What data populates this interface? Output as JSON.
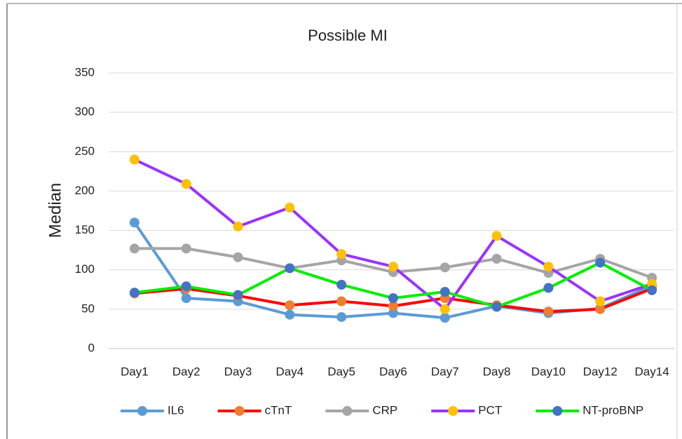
{
  "chart_data": {
    "type": "line",
    "title": "Possible MI",
    "y_label": "Median",
    "categories": [
      "Day1",
      "Day2",
      "Day3",
      "Day4",
      "Day5",
      "Day6",
      "Day7",
      "Day8",
      "Day10",
      "Day12",
      "Day14"
    ],
    "series": [
      {
        "name": "IL6",
        "color": "#5b9bd5",
        "marker_color": "#5b9bd5",
        "values": [
          160,
          64,
          60,
          43,
          40,
          45,
          39,
          54,
          45,
          51,
          80
        ]
      },
      {
        "name": "cTnT",
        "color": "#ff0000",
        "marker_color": "#ed7d31",
        "values": [
          70,
          76,
          67,
          55,
          60,
          54,
          64,
          55,
          47,
          50,
          76
        ]
      },
      {
        "name": "CRP",
        "color": "#a5a5a5",
        "marker_color": "#a5a5a5",
        "values": [
          127,
          127,
          116,
          102,
          112,
          97,
          103,
          114,
          96,
          114,
          90
        ]
      },
      {
        "name": "PCT",
        "color": "#9933ff",
        "marker_color": "#ffc000",
        "values": [
          240,
          209,
          155,
          179,
          120,
          104,
          50,
          143,
          104,
          60,
          82
        ]
      },
      {
        "name": "NT-proBNP",
        "color": "#00ee00",
        "marker_color": "#4472c4",
        "values": [
          71,
          79,
          68,
          102,
          81,
          64,
          72,
          53,
          77,
          109,
          74
        ]
      }
    ],
    "ylim": [
      0,
      350
    ],
    "yticks": [
      0,
      50,
      100,
      150,
      200,
      250,
      300,
      350
    ],
    "grid": true,
    "legend": "bottom"
  }
}
